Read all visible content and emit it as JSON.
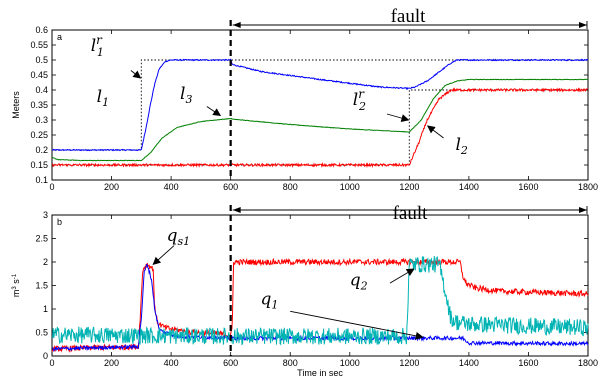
{
  "chart_data": [
    {
      "type": "line",
      "panel_label": "a",
      "title": "",
      "xlabel": "",
      "ylabel": "Meters",
      "xlim": [
        0,
        1800
      ],
      "ylim": [
        0.1,
        0.6
      ],
      "xticks": [
        0,
        200,
        400,
        600,
        800,
        1000,
        1200,
        1400,
        1600,
        1800
      ],
      "yticks": [
        0.1,
        0.15,
        0.2,
        0.25,
        0.3,
        0.35,
        0.4,
        0.45,
        0.5,
        0.55,
        0.6
      ],
      "fault_start": 600,
      "fault_end": 1800,
      "fault_label": "fault",
      "series": [
        {
          "key": "l1",
          "color": "#0000ff",
          "noise": 0.002,
          "points": [
            [
              0,
              0.2
            ],
            [
              300,
              0.2
            ],
            [
              315,
              0.27
            ],
            [
              330,
              0.35
            ],
            [
              345,
              0.42
            ],
            [
              360,
              0.47
            ],
            [
              380,
              0.495
            ],
            [
              400,
              0.5
            ],
            [
              600,
              0.5
            ],
            [
              605,
              0.485
            ],
            [
              700,
              0.462
            ],
            [
              900,
              0.435
            ],
            [
              1100,
              0.41
            ],
            [
              1200,
              0.405
            ],
            [
              1220,
              0.41
            ],
            [
              1260,
              0.43
            ],
            [
              1300,
              0.46
            ],
            [
              1340,
              0.49
            ],
            [
              1360,
              0.5
            ],
            [
              1800,
              0.5
            ]
          ]
        },
        {
          "key": "l3",
          "color": "#008000",
          "noise": 0.0008,
          "points": [
            [
              0,
              0.175
            ],
            [
              20,
              0.168
            ],
            [
              100,
              0.165
            ],
            [
              300,
              0.165
            ],
            [
              330,
              0.19
            ],
            [
              370,
              0.24
            ],
            [
              420,
              0.275
            ],
            [
              500,
              0.295
            ],
            [
              600,
              0.305
            ],
            [
              605,
              0.303
            ],
            [
              800,
              0.285
            ],
            [
              1000,
              0.27
            ],
            [
              1200,
              0.26
            ],
            [
              1240,
              0.3
            ],
            [
              1280,
              0.37
            ],
            [
              1320,
              0.415
            ],
            [
              1360,
              0.43
            ],
            [
              1400,
              0.435
            ],
            [
              1800,
              0.435
            ]
          ]
        },
        {
          "key": "l2",
          "color": "#ff0000",
          "noise": 0.004,
          "points": [
            [
              0,
              0.15
            ],
            [
              1200,
              0.15
            ],
            [
              1230,
              0.22
            ],
            [
              1260,
              0.3
            ],
            [
              1300,
              0.37
            ],
            [
              1340,
              0.4
            ],
            [
              1800,
              0.4
            ]
          ]
        }
      ],
      "references": [
        {
          "key": "l1r",
          "color": "#000000",
          "dash": "1.5 2",
          "points": [
            [
              0,
              0.2
            ],
            [
              300,
              0.2
            ],
            [
              300,
              0.5
            ],
            [
              1800,
              0.5
            ]
          ]
        },
        {
          "key": "l2r",
          "color": "#000000",
          "dash": "1.5 2",
          "points": [
            [
              0,
              0.15
            ],
            [
              1200,
              0.15
            ],
            [
              1200,
              0.4
            ],
            [
              1800,
              0.4
            ]
          ]
        }
      ],
      "annotations": [
        {
          "key": "l1r",
          "base": "l",
          "sup": "r",
          "sub": "1",
          "text_at": [
            130,
            0.53
          ],
          "arrow_from": [
            265,
            0.465
          ],
          "arrow_to": [
            297,
            0.44
          ]
        },
        {
          "key": "l1",
          "base": "l",
          "sub": "1",
          "text_at": [
            150,
            0.36
          ],
          "arrow_from": null,
          "arrow_to": null
        },
        {
          "key": "l3",
          "base": "l",
          "sub": "3",
          "text_at": [
            430,
            0.37
          ],
          "arrow_from": [
            520,
            0.345
          ],
          "arrow_to": [
            565,
            0.315
          ]
        },
        {
          "key": "l2r",
          "base": "l",
          "sup": "r",
          "sub": "2",
          "text_at": [
            1010,
            0.35
          ],
          "arrow_from": [
            1125,
            0.32
          ],
          "arrow_to": [
            1197,
            0.3
          ]
        },
        {
          "key": "l2",
          "base": "l",
          "sub": "2",
          "text_at": [
            1355,
            0.2
          ],
          "arrow_from": [
            1315,
            0.24
          ],
          "arrow_to": [
            1262,
            0.28
          ]
        }
      ]
    },
    {
      "type": "line",
      "panel_label": "b",
      "title": "",
      "xlabel": "Time in sec",
      "ylabel": "m3 s-1",
      "xlim": [
        0,
        1800
      ],
      "ylim": [
        0,
        3
      ],
      "xticks": [
        0,
        200,
        400,
        600,
        800,
        1000,
        1200,
        1400,
        1600,
        1800
      ],
      "yticks": [
        0,
        0.5,
        1,
        1.5,
        2,
        2.5,
        3
      ],
      "fault_start": 600,
      "fault_end": 1800,
      "fault_label": "fault",
      "series": [
        {
          "key": "qs1",
          "color": "#ff0000",
          "noise": 0.06,
          "points": [
            [
              0,
              0.15
            ],
            [
              290,
              0.2
            ],
            [
              298,
              1.0
            ],
            [
              305,
              1.85
            ],
            [
              320,
              1.95
            ],
            [
              340,
              1.85
            ],
            [
              345,
              1.0
            ],
            [
              355,
              0.7
            ],
            [
              380,
              0.6
            ],
            [
              450,
              0.52
            ],
            [
              600,
              0.45
            ],
            [
              605,
              0.55
            ],
            [
              610,
              2.0
            ],
            [
              1370,
              2.0
            ],
            [
              1380,
              1.7
            ],
            [
              1390,
              1.55
            ],
            [
              1420,
              1.45
            ],
            [
              1500,
              1.38
            ],
            [
              1800,
              1.32
            ]
          ]
        },
        {
          "key": "q1",
          "color": "#0000ff",
          "noise": 0.04,
          "points": [
            [
              0,
              0.15
            ],
            [
              290,
              0.2
            ],
            [
              300,
              0.8
            ],
            [
              310,
              1.8
            ],
            [
              320,
              1.95
            ],
            [
              335,
              1.6
            ],
            [
              345,
              1.0
            ],
            [
              360,
              0.55
            ],
            [
              420,
              0.42
            ],
            [
              600,
              0.38
            ],
            [
              600,
              0.38
            ],
            [
              1200,
              0.38
            ],
            [
              1380,
              0.38
            ],
            [
              1400,
              0.28
            ],
            [
              1800,
              0.26
            ]
          ]
        },
        {
          "key": "q2",
          "color": "#00b3b3",
          "noise": 0.18,
          "points": [
            [
              0,
              0.45
            ],
            [
              600,
              0.42
            ],
            [
              1190,
              0.42
            ],
            [
              1195,
              1.0
            ],
            [
              1200,
              1.95
            ],
            [
              1300,
              1.95
            ],
            [
              1320,
              1.4
            ],
            [
              1340,
              0.8
            ],
            [
              1360,
              0.72
            ],
            [
              1400,
              0.68
            ],
            [
              1500,
              0.66
            ],
            [
              1800,
              0.6
            ]
          ]
        }
      ],
      "references": [],
      "annotations": [
        {
          "key": "qs1",
          "base": "q",
          "sub": "s1",
          "text_at": [
            385,
            2.45
          ],
          "arrow_from": [
            410,
            2.35
          ],
          "arrow_to": [
            340,
            1.95
          ]
        },
        {
          "key": "q1",
          "base": "q",
          "sub": "1",
          "text_at": [
            700,
            1.1
          ],
          "arrow_from": [
            800,
            0.95
          ],
          "arrow_to": [
            1245,
            0.4
          ]
        },
        {
          "key": "q2",
          "base": "q",
          "sub": "2",
          "text_at": [
            1000,
            1.5
          ],
          "arrow_from": [
            1135,
            1.55
          ],
          "arrow_to": [
            1215,
            1.85
          ]
        }
      ]
    }
  ]
}
